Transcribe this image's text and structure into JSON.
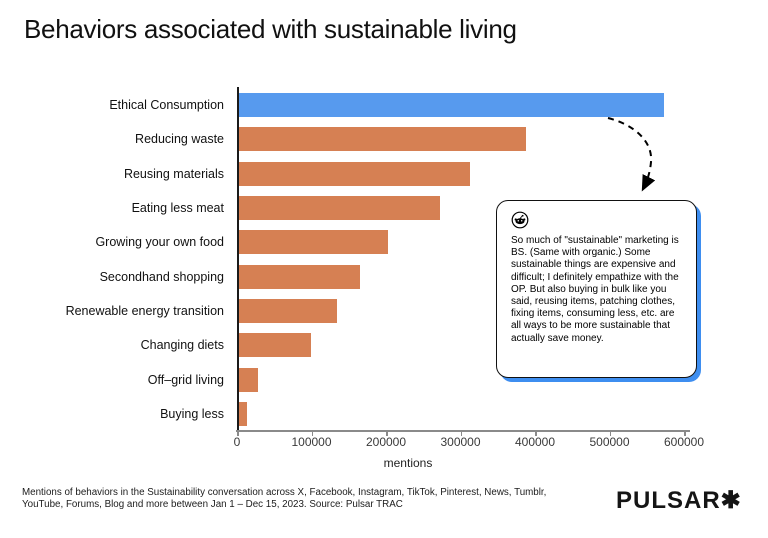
{
  "title": "Behaviors associated with sustainable living",
  "chart_data": {
    "type": "bar",
    "orientation": "horizontal",
    "title": "Behaviors associated with sustainable living",
    "categories": [
      "Ethical Consumption",
      "Reducing waste",
      "Reusing materials",
      "Eating less meat",
      "Growing your own food",
      "Secondhand shopping",
      "Renewable energy transition",
      "Changing diets",
      "Off–grid living",
      "Buying less"
    ],
    "values": [
      570000,
      385000,
      310000,
      270000,
      200000,
      163000,
      132000,
      96000,
      26000,
      10000
    ],
    "xlabel": "mentions",
    "ylabel": "",
    "xlim": [
      0,
      600000
    ],
    "xticks": [
      0,
      100000,
      200000,
      300000,
      400000,
      500000,
      600000
    ],
    "grid": false,
    "legend": false,
    "highlight_index": 0,
    "highlight_color": "#579AEE",
    "bar_color": "#D68053"
  },
  "annotation": {
    "icon": "reddit-icon",
    "text": "So much of \"sustainable\" marketing is BS. (Same with organic.) Some sustainable things are expensive and difficult; I definitely empathize with the OP. But also buying in bulk like you said, reusing items, patching clothes, fixing items, consuming less, etc. are all ways to be more sustainable that actually save money.",
    "shadow_color": "#3E8EF0"
  },
  "footer": {
    "line1": "Mentions of behaviors in the Sustainability conversation across X, Facebook, Instagram, TikTok, Pinterest, News, Tumblr,",
    "line2": "YouTube, Forums, Blog and more between Jan 1 – Dec 15, 2023. Source: Pulsar TRAC"
  },
  "brand": {
    "logo": "PULSAR✱"
  }
}
